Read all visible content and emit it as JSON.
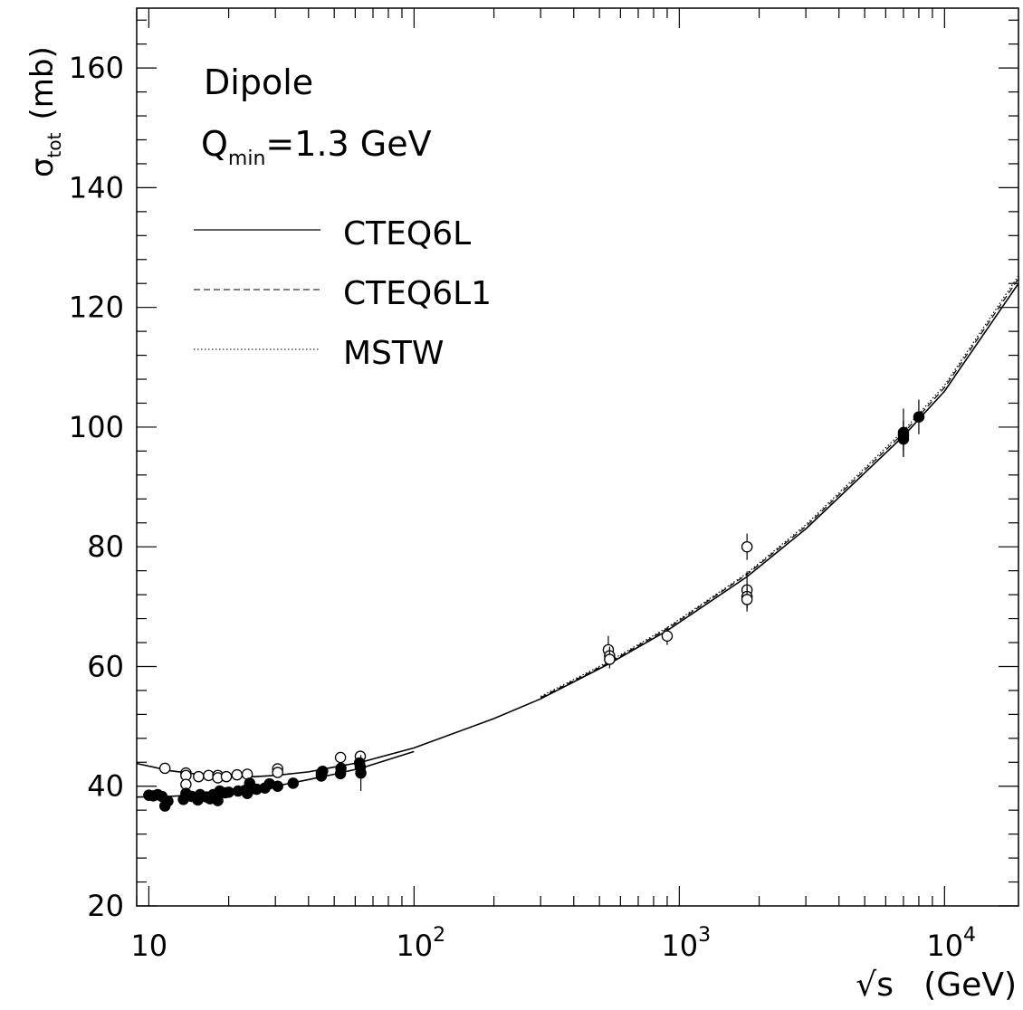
{
  "chart_data": {
    "type": "scatter",
    "xscale": "log",
    "xlabel_main": "√s",
    "xlabel_unit": "(GeV)",
    "ylabel_main": "σ",
    "ylabel_sub": "tot",
    "ylabel_unit": "(mb)",
    "xlim": [
      9,
      19000
    ],
    "ylim": [
      20,
      170
    ],
    "x_ticks": [
      {
        "value": 10,
        "label": "10",
        "exp": ""
      },
      {
        "value": 100,
        "label": "10",
        "exp": "2"
      },
      {
        "value": 1000,
        "label": "10",
        "exp": "3"
      },
      {
        "value": 10000,
        "label": "10",
        "exp": "4"
      }
    ],
    "y_ticks": [
      20,
      40,
      60,
      80,
      100,
      120,
      140,
      160
    ],
    "annotations": {
      "model": "Dipole",
      "q_main": "Q",
      "q_sub": "min",
      "q_rest": "=1.3 GeV"
    },
    "legend_position": "top-left",
    "series": [
      {
        "name": "CTEQ6L",
        "style": "solid",
        "branches": [
          {
            "x": [
              9,
              12,
              16,
              20,
              25,
              30,
              40,
              50,
              63,
              100,
              200,
              300,
              546,
              900,
              1800,
              3000,
              7000,
              10000,
              19000
            ],
            "y": [
              43.8,
              42.6,
              41.9,
              41.6,
              41.6,
              41.8,
              42.4,
              43.2,
              44.0,
              46.4,
              51.3,
              54.6,
              60.5,
              66.0,
              75.0,
              83.0,
              98.5,
              106,
              124
            ]
          },
          {
            "x": [
              9,
              12,
              16,
              20,
              25,
              30,
              40,
              50,
              63,
              100
            ],
            "y": [
              38.2,
              38.3,
              38.6,
              39.0,
              39.5,
              40.0,
              41.1,
              42.0,
              43.0,
              45.8
            ]
          }
        ]
      },
      {
        "name": "CTEQ6L1",
        "style": "dashed",
        "branches": [
          {
            "x": [
              300,
              546,
              900,
              1800,
              3000,
              7000,
              10000,
              19000
            ],
            "y": [
              54.8,
              60.7,
              66.3,
              75.4,
              83.4,
              99.0,
              106.6,
              124.8
            ]
          }
        ]
      },
      {
        "name": "MSTW",
        "style": "dotted",
        "branches": [
          {
            "x": [
              300,
              546,
              900,
              1800,
              3000,
              7000,
              10000,
              19000
            ],
            "y": [
              55.0,
              60.9,
              66.5,
              75.6,
              83.7,
              99.4,
              107.0,
              125.3
            ]
          }
        ]
      }
    ],
    "points_open": [
      {
        "x": 11.5,
        "y": 43.0,
        "err": 0.5
      },
      {
        "x": 13.8,
        "y": 42.2,
        "err": 0.6
      },
      {
        "x": 13.8,
        "y": 41.8,
        "err": 0.6
      },
      {
        "x": 13.8,
        "y": 40.3,
        "err": 0.8
      },
      {
        "x": 15.4,
        "y": 41.6,
        "err": 0.5
      },
      {
        "x": 16.8,
        "y": 41.8,
        "err": 0.5
      },
      {
        "x": 18.2,
        "y": 41.8,
        "err": 0.6
      },
      {
        "x": 18.2,
        "y": 41.4,
        "err": 0.6
      },
      {
        "x": 19.6,
        "y": 41.6,
        "err": 0.5
      },
      {
        "x": 21.5,
        "y": 41.9,
        "err": 0.5
      },
      {
        "x": 23.5,
        "y": 42.0,
        "err": 0.5
      },
      {
        "x": 30.6,
        "y": 42.9,
        "err": 0.5
      },
      {
        "x": 30.6,
        "y": 42.3,
        "err": 0.5
      },
      {
        "x": 44.7,
        "y": 42.2,
        "err": 0.5
      },
      {
        "x": 52.8,
        "y": 44.8,
        "err": 0.6
      },
      {
        "x": 62.7,
        "y": 45.0,
        "err": 0.8
      },
      {
        "x": 540,
        "y": 62.8,
        "err": 2.3
      },
      {
        "x": 546,
        "y": 61.8,
        "err": 1.5
      },
      {
        "x": 546,
        "y": 61.2,
        "err": 1.5
      },
      {
        "x": 900,
        "y": 65.1,
        "err": 1.5
      },
      {
        "x": 1800,
        "y": 80.0,
        "err": 2.2
      },
      {
        "x": 1800,
        "y": 72.8,
        "err": 3.1
      },
      {
        "x": 1800,
        "y": 71.7,
        "err": 2.0
      },
      {
        "x": 1800,
        "y": 71.2,
        "err": 2.0
      }
    ],
    "points_filled": [
      {
        "x": 10.0,
        "y": 38.5,
        "err": 0.4
      },
      {
        "x": 10.4,
        "y": 38.4,
        "err": 0.4
      },
      {
        "x": 10.8,
        "y": 38.6,
        "err": 0.4
      },
      {
        "x": 11.2,
        "y": 38.3,
        "err": 0.4
      },
      {
        "x": 11.5,
        "y": 36.7,
        "err": 0.6
      },
      {
        "x": 11.8,
        "y": 37.5,
        "err": 0.4
      },
      {
        "x": 13.5,
        "y": 37.8,
        "err": 0.4
      },
      {
        "x": 13.8,
        "y": 38.8,
        "err": 0.5
      },
      {
        "x": 14.5,
        "y": 38.3,
        "err": 0.4
      },
      {
        "x": 15.3,
        "y": 37.7,
        "err": 0.4
      },
      {
        "x": 15.6,
        "y": 38.6,
        "err": 0.4
      },
      {
        "x": 16.5,
        "y": 38.2,
        "err": 0.4
      },
      {
        "x": 17.0,
        "y": 37.9,
        "err": 0.4
      },
      {
        "x": 17.5,
        "y": 38.6,
        "err": 0.4
      },
      {
        "x": 18.2,
        "y": 37.6,
        "err": 0.5
      },
      {
        "x": 18.5,
        "y": 39.2,
        "err": 0.5
      },
      {
        "x": 19.4,
        "y": 38.9,
        "err": 0.4
      },
      {
        "x": 20.0,
        "y": 39.0,
        "err": 0.4
      },
      {
        "x": 21.7,
        "y": 39.2,
        "err": 0.4
      },
      {
        "x": 23.0,
        "y": 39.3,
        "err": 0.4
      },
      {
        "x": 23.5,
        "y": 38.8,
        "err": 0.4
      },
      {
        "x": 24.0,
        "y": 40.5,
        "err": 0.4
      },
      {
        "x": 24.5,
        "y": 39.6,
        "err": 0.4
      },
      {
        "x": 25.5,
        "y": 39.5,
        "err": 0.4
      },
      {
        "x": 27.4,
        "y": 39.7,
        "err": 0.4
      },
      {
        "x": 28.5,
        "y": 40.4,
        "err": 0.4
      },
      {
        "x": 30.6,
        "y": 40.0,
        "err": 0.4
      },
      {
        "x": 35.0,
        "y": 40.5,
        "err": 0.4
      },
      {
        "x": 44.7,
        "y": 41.7,
        "err": 0.4
      },
      {
        "x": 45.2,
        "y": 42.5,
        "err": 0.4
      },
      {
        "x": 52.8,
        "y": 42.1,
        "err": 0.5
      },
      {
        "x": 53.0,
        "y": 43.0,
        "err": 0.5
      },
      {
        "x": 62.3,
        "y": 43.9,
        "err": 0.6
      },
      {
        "x": 62.7,
        "y": 43.2,
        "err": 0.6
      },
      {
        "x": 63.0,
        "y": 42.2,
        "err": 3.0
      },
      {
        "x": 7000,
        "y": 98.6,
        "err": 2.5
      },
      {
        "x": 7000,
        "y": 98.0,
        "err": 3.0
      },
      {
        "x": 7000,
        "y": 99.1,
        "err": 4.0
      },
      {
        "x": 8000,
        "y": 101.7,
        "err": 2.9
      }
    ]
  }
}
